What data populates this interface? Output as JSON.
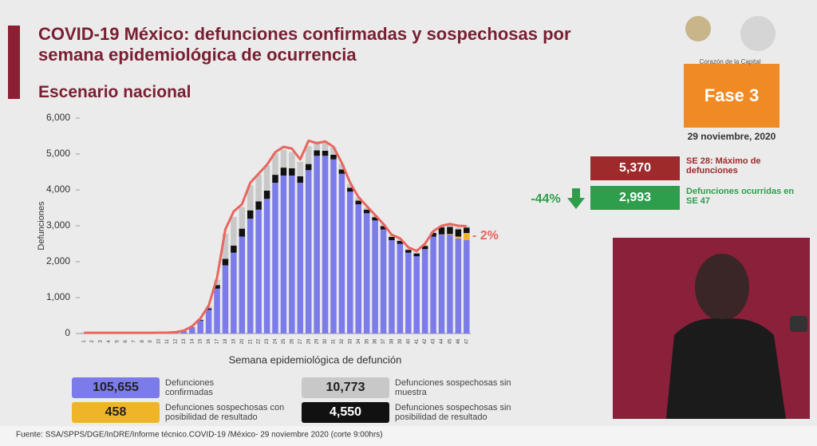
{
  "chart_data": {
    "type": "bar",
    "stacked": true,
    "title": "COVID-19 México: defunciones confirmadas y sospechosas por semana epidemiológica de ocurrencia",
    "subtitle": "Escenario nacional",
    "xlabel": "Semana epidemiológica de defunción",
    "ylabel": "Defunciones",
    "annotation": "- 2%",
    "categories": [
      "1",
      "2",
      "3",
      "4",
      "5",
      "6",
      "7",
      "8",
      "9",
      "10",
      "11",
      "12",
      "13",
      "14",
      "15",
      "16",
      "17",
      "18",
      "19",
      "20",
      "21",
      "22",
      "23",
      "24",
      "25",
      "26",
      "27",
      "28",
      "29",
      "30",
      "31",
      "32",
      "33",
      "34",
      "35",
      "36",
      "37",
      "38",
      "39",
      "40",
      "41",
      "42",
      "43",
      "44",
      "45",
      "46",
      "47"
    ],
    "series": [
      {
        "name": "Defunciones confirmadas",
        "color": "#7b7bea",
        "total": "105,655",
        "values": [
          10,
          10,
          10,
          10,
          10,
          10,
          10,
          10,
          10,
          12,
          15,
          25,
          60,
          160,
          360,
          660,
          1250,
          1900,
          2250,
          2700,
          3200,
          3450,
          3750,
          4200,
          4400,
          4400,
          4200,
          4550,
          4950,
          4950,
          4850,
          4450,
          3950,
          3600,
          3350,
          3150,
          2900,
          2600,
          2500,
          2250,
          2150,
          2350,
          2700,
          2750,
          2750,
          2650,
          2600
        ]
      },
      {
        "name": "Defunciones sospechosas con posibilidad de resultado",
        "color": "#f0b429",
        "total": "458",
        "values": [
          0,
          0,
          0,
          0,
          0,
          0,
          0,
          0,
          0,
          0,
          0,
          0,
          0,
          0,
          0,
          0,
          0,
          0,
          0,
          0,
          0,
          0,
          0,
          0,
          0,
          0,
          0,
          0,
          0,
          0,
          0,
          0,
          0,
          0,
          0,
          0,
          0,
          0,
          0,
          0,
          0,
          0,
          0,
          10,
          20,
          50,
          200
        ]
      },
      {
        "name": "Defunciones sospechosas sin posibilidad de resultado",
        "color": "#111111",
        "total": "4,550",
        "values": [
          0,
          0,
          0,
          0,
          0,
          0,
          0,
          0,
          0,
          0,
          0,
          0,
          5,
          10,
          20,
          40,
          100,
          180,
          200,
          220,
          230,
          230,
          230,
          220,
          220,
          200,
          180,
          170,
          150,
          140,
          130,
          120,
          110,
          100,
          100,
          90,
          90,
          90,
          80,
          80,
          80,
          90,
          100,
          200,
          200,
          200,
          150
        ]
      },
      {
        "name": "Defunciones sospechosas sin muestra",
        "color": "#c8c8c8",
        "total": "10,773",
        "values": [
          0,
          0,
          0,
          0,
          0,
          0,
          0,
          0,
          0,
          0,
          0,
          0,
          5,
          10,
          30,
          60,
          150,
          700,
          800,
          600,
          700,
          750,
          700,
          600,
          500,
          450,
          400,
          500,
          250,
          250,
          200,
          150,
          100,
          80,
          60,
          50,
          50,
          40,
          40,
          30,
          30,
          30,
          40,
          40,
          50,
          50,
          40
        ]
      }
    ],
    "line": {
      "color": "#e8665e",
      "values": [
        20,
        20,
        20,
        20,
        20,
        20,
        20,
        20,
        20,
        22,
        25,
        35,
        80,
        200,
        420,
        780,
        1550,
        2900,
        3400,
        3600,
        4200,
        4450,
        4700,
        5050,
        5200,
        5150,
        4850,
        5370,
        5300,
        5350,
        5200,
        4750,
        4200,
        3800,
        3550,
        3300,
        3050,
        2750,
        2650,
        2400,
        2300,
        2500,
        2850,
        3000,
        3050,
        3000,
        2993
      ]
    },
    "ylim": [
      0,
      6000
    ],
    "yticks": [
      0,
      {
        "value": 1000,
        "label": "1,000"
      },
      {
        "value": 2000,
        "label": "2,000"
      },
      {
        "value": 3000,
        "label": "3,000"
      },
      {
        "value": 4000,
        "label": "4,000"
      },
      {
        "value": 5000,
        "label": "5,000"
      },
      {
        "value": 6000,
        "label": "6,000"
      }
    ],
    "grid": false
  },
  "page": {
    "logo": "Corazón de la Capital",
    "phase": "Fase 3",
    "date": "29 noviembre, 2020",
    "max_value": "5,370",
    "max_label": "SE 28: Máximo de defunciones",
    "change": "-44%",
    "last_value": "2,993",
    "last_label": "Defunciones ocurridas en SE 47",
    "source": "Fuente: SSA/SPPS/DGE/InDRE/Informe técnico.COVID-19 /México- 29 noviembre 2020 (corte 9:00hrs)"
  }
}
